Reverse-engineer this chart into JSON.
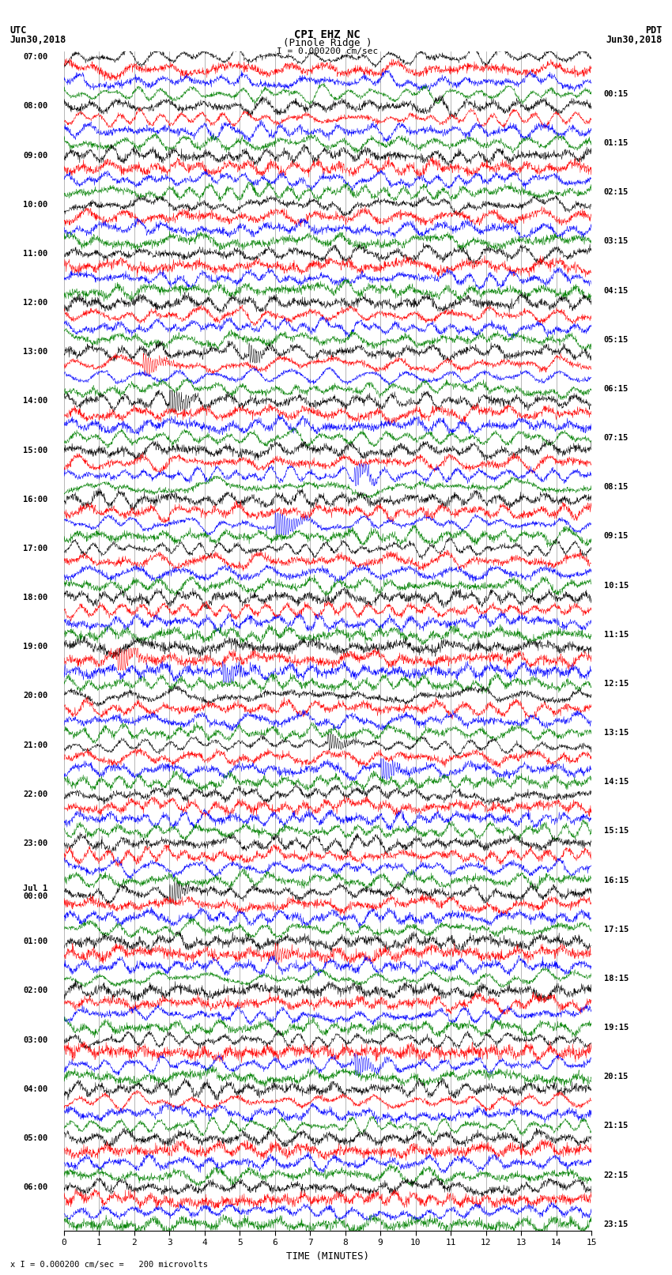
{
  "title_line1": "CPI EHZ NC",
  "title_line2": "(Pinole Ridge )",
  "scale_label": "I = 0.000200 cm/sec",
  "footer_label": "x I = 0.000200 cm/sec =   200 microvolts",
  "left_header_line1": "UTC",
  "left_header_line2": "Jun30,2018",
  "right_header_line1": "PDT",
  "right_header_line2": "Jun30,2018",
  "xlabel": "TIME (MINUTES)",
  "minutes_per_row": 15,
  "samples_per_row": 1800,
  "colors": [
    "black",
    "red",
    "blue",
    "green"
  ],
  "background_color": "white",
  "fig_width": 8.5,
  "fig_height": 16.13,
  "dpi": 100,
  "utc_labels": [
    "07:00",
    "08:00",
    "09:00",
    "10:00",
    "11:00",
    "12:00",
    "13:00",
    "14:00",
    "15:00",
    "16:00",
    "17:00",
    "18:00",
    "19:00",
    "20:00",
    "21:00",
    "22:00",
    "23:00",
    "Jul 1\n00:00",
    "01:00",
    "02:00",
    "03:00",
    "04:00",
    "05:00",
    "06:00"
  ],
  "pdt_labels": [
    "00:15",
    "01:15",
    "02:15",
    "03:15",
    "04:15",
    "05:15",
    "06:15",
    "07:15",
    "08:15",
    "09:15",
    "10:15",
    "11:15",
    "12:15",
    "13:15",
    "14:15",
    "15:15",
    "16:15",
    "17:15",
    "18:15",
    "19:15",
    "20:15",
    "21:15",
    "22:15",
    "23:15"
  ],
  "num_hour_blocks": 24,
  "traces_per_block": 4
}
